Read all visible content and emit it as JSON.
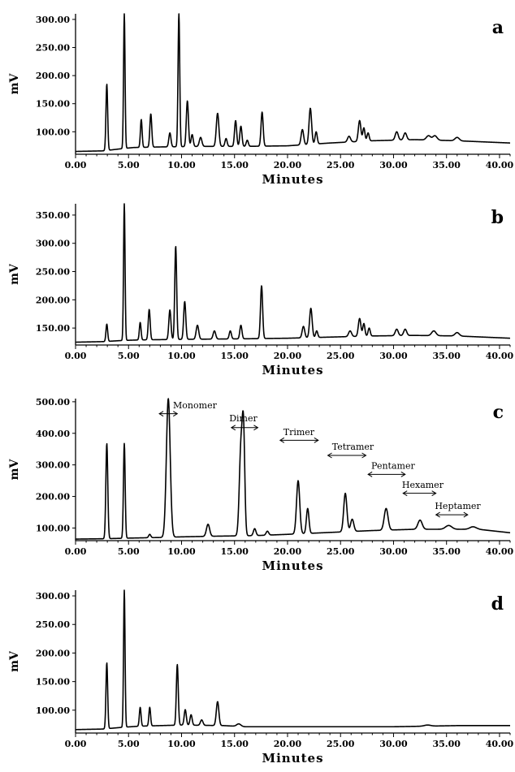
{
  "chart_data": [
    {
      "type": "line",
      "panel_label": "a",
      "xlabel": "Minutes",
      "ylabel": "mV",
      "xlim": [
        0,
        41
      ],
      "ylim": [
        60,
        310
      ],
      "xticks": [
        "0.00",
        "5.00",
        "10.00",
        "15.00",
        "20.00",
        "25.00",
        "30.00",
        "35.00",
        "40.00"
      ],
      "yticks": [
        "100.00",
        "150.00",
        "200.00",
        "250.00",
        "300.00"
      ],
      "ytick_values": [
        100,
        150,
        200,
        250,
        300
      ],
      "baseline": [
        [
          0,
          65
        ],
        [
          2.6,
          66
        ],
        [
          4.4,
          70
        ],
        [
          5.5,
          72
        ],
        [
          8,
          73
        ],
        [
          12,
          74
        ],
        [
          16,
          74
        ],
        [
          20,
          75
        ],
        [
          24,
          80
        ],
        [
          28,
          84
        ],
        [
          32,
          86
        ],
        [
          36,
          84
        ],
        [
          41,
          80
        ]
      ],
      "peaks": [
        {
          "x": 2.95,
          "h": 185,
          "w": 0.08
        },
        {
          "x": 4.6,
          "h": 310,
          "w": 0.07
        },
        {
          "x": 6.2,
          "h": 122,
          "w": 0.08
        },
        {
          "x": 7.1,
          "h": 132,
          "w": 0.09
        },
        {
          "x": 8.9,
          "h": 98,
          "w": 0.1
        },
        {
          "x": 9.75,
          "h": 310,
          "w": 0.08
        },
        {
          "x": 10.55,
          "h": 155,
          "w": 0.1
        },
        {
          "x": 11.0,
          "h": 95,
          "w": 0.1
        },
        {
          "x": 11.8,
          "h": 90,
          "w": 0.12
        },
        {
          "x": 13.4,
          "h": 133,
          "w": 0.12
        },
        {
          "x": 14.2,
          "h": 88,
          "w": 0.1
        },
        {
          "x": 15.1,
          "h": 120,
          "w": 0.1
        },
        {
          "x": 15.6,
          "h": 110,
          "w": 0.1
        },
        {
          "x": 16.2,
          "h": 85,
          "w": 0.1
        },
        {
          "x": 17.6,
          "h": 135,
          "w": 0.1
        },
        {
          "x": 21.4,
          "h": 104,
          "w": 0.12
        },
        {
          "x": 22.15,
          "h": 142,
          "w": 0.12
        },
        {
          "x": 22.7,
          "h": 100,
          "w": 0.1
        },
        {
          "x": 25.8,
          "h": 92,
          "w": 0.14
        },
        {
          "x": 26.8,
          "h": 120,
          "w": 0.12
        },
        {
          "x": 27.2,
          "h": 107,
          "w": 0.1
        },
        {
          "x": 27.6,
          "h": 98,
          "w": 0.1
        },
        {
          "x": 30.3,
          "h": 100,
          "w": 0.14
        },
        {
          "x": 31.1,
          "h": 98,
          "w": 0.14
        },
        {
          "x": 33.3,
          "h": 93,
          "w": 0.2
        },
        {
          "x": 33.9,
          "h": 93,
          "w": 0.2
        },
        {
          "x": 36.0,
          "h": 90,
          "w": 0.2
        }
      ]
    },
    {
      "type": "line",
      "panel_label": "b",
      "xlabel": "Minutes",
      "ylabel": "mV",
      "xlim": [
        0,
        41
      ],
      "ylim": [
        120,
        370
      ],
      "xticks": [
        "0.00",
        "5.00",
        "10.00",
        "15.00",
        "20.00",
        "25.00",
        "30.00",
        "35.00",
        "40.00"
      ],
      "yticks": [
        "150.00",
        "200.00",
        "250.00",
        "300.00",
        "350.00"
      ],
      "ytick_values": [
        150,
        200,
        250,
        300,
        350
      ],
      "baseline": [
        [
          0,
          125
        ],
        [
          2.6,
          126
        ],
        [
          4.4,
          128
        ],
        [
          6,
          129
        ],
        [
          10,
          130
        ],
        [
          16,
          131
        ],
        [
          20,
          132
        ],
        [
          24,
          134
        ],
        [
          28,
          136
        ],
        [
          32,
          137
        ],
        [
          36,
          136
        ],
        [
          41,
          132
        ]
      ],
      "peaks": [
        {
          "x": 2.95,
          "h": 157,
          "w": 0.08
        },
        {
          "x": 4.6,
          "h": 370,
          "w": 0.07
        },
        {
          "x": 6.1,
          "h": 160,
          "w": 0.08
        },
        {
          "x": 6.95,
          "h": 183,
          "w": 0.09
        },
        {
          "x": 8.9,
          "h": 182,
          "w": 0.1
        },
        {
          "x": 9.45,
          "h": 295,
          "w": 0.09
        },
        {
          "x": 10.3,
          "h": 197,
          "w": 0.1
        },
        {
          "x": 11.5,
          "h": 155,
          "w": 0.12
        },
        {
          "x": 13.1,
          "h": 145,
          "w": 0.12
        },
        {
          "x": 14.6,
          "h": 145,
          "w": 0.1
        },
        {
          "x": 15.6,
          "h": 155,
          "w": 0.1
        },
        {
          "x": 17.55,
          "h": 225,
          "w": 0.1
        },
        {
          "x": 21.5,
          "h": 153,
          "w": 0.12
        },
        {
          "x": 22.2,
          "h": 185,
          "w": 0.12
        },
        {
          "x": 22.75,
          "h": 145,
          "w": 0.1
        },
        {
          "x": 25.9,
          "h": 145,
          "w": 0.14
        },
        {
          "x": 26.8,
          "h": 167,
          "w": 0.12
        },
        {
          "x": 27.2,
          "h": 158,
          "w": 0.1
        },
        {
          "x": 27.7,
          "h": 150,
          "w": 0.1
        },
        {
          "x": 30.3,
          "h": 148,
          "w": 0.14
        },
        {
          "x": 31.1,
          "h": 148,
          "w": 0.14
        },
        {
          "x": 33.8,
          "h": 145,
          "w": 0.2
        },
        {
          "x": 36.0,
          "h": 142,
          "w": 0.2
        }
      ]
    },
    {
      "type": "line",
      "panel_label": "c",
      "xlabel": "Minutes",
      "ylabel": "mV",
      "xlim": [
        0,
        41
      ],
      "ylim": [
        60,
        510
      ],
      "xticks": [
        "0.00",
        "5.00",
        "10.00",
        "15.00",
        "20.00",
        "25.00",
        "30.00",
        "35.00",
        "40.00"
      ],
      "yticks": [
        "100.00",
        "200.00",
        "300.00",
        "400.00",
        "500.00"
      ],
      "ytick_values": [
        100,
        200,
        300,
        400,
        500
      ],
      "baseline": [
        [
          0,
          65
        ],
        [
          2.6,
          66
        ],
        [
          5,
          68
        ],
        [
          8,
          70
        ],
        [
          10,
          72
        ],
        [
          13,
          74
        ],
        [
          17,
          76
        ],
        [
          20,
          80
        ],
        [
          24,
          86
        ],
        [
          28,
          92
        ],
        [
          32,
          96
        ],
        [
          36,
          96
        ],
        [
          38,
          96
        ],
        [
          41,
          85
        ]
      ],
      "peaks": [
        {
          "x": 2.95,
          "h": 368,
          "w": 0.09
        },
        {
          "x": 4.6,
          "h": 368,
          "w": 0.08
        },
        {
          "x": 7.0,
          "h": 80,
          "w": 0.1
        },
        {
          "x": 8.75,
          "h": 510,
          "w": 0.18
        },
        {
          "x": 12.5,
          "h": 112,
          "w": 0.15
        },
        {
          "x": 15.6,
          "h": 350,
          "w": 0.15
        },
        {
          "x": 15.85,
          "h": 385,
          "w": 0.12
        },
        {
          "x": 16.9,
          "h": 98,
          "w": 0.12
        },
        {
          "x": 18.1,
          "h": 90,
          "w": 0.12
        },
        {
          "x": 21.0,
          "h": 250,
          "w": 0.15
        },
        {
          "x": 21.9,
          "h": 162,
          "w": 0.12
        },
        {
          "x": 25.45,
          "h": 210,
          "w": 0.15
        },
        {
          "x": 26.1,
          "h": 128,
          "w": 0.15
        },
        {
          "x": 29.3,
          "h": 162,
          "w": 0.18
        },
        {
          "x": 32.5,
          "h": 125,
          "w": 0.2
        },
        {
          "x": 35.2,
          "h": 108,
          "w": 0.3
        },
        {
          "x": 37.5,
          "h": 104,
          "w": 0.3
        }
      ],
      "annotations": [
        {
          "text": "Monomer",
          "x1": 7.9,
          "x2": 9.6,
          "y": 462,
          "lx": 9.2,
          "ly": 490
        },
        {
          "text": "Dimer",
          "x1": 14.7,
          "x2": 17.2,
          "y": 418,
          "lx": 14.5,
          "ly": 448
        },
        {
          "text": "Trimer",
          "x1": 19.3,
          "x2": 22.9,
          "y": 378,
          "lx": 19.6,
          "ly": 405
        },
        {
          "text": "Tetramer",
          "x1": 23.8,
          "x2": 27.4,
          "y": 330,
          "lx": 24.2,
          "ly": 358
        },
        {
          "text": "Pentamer",
          "x1": 27.6,
          "x2": 31.1,
          "y": 270,
          "lx": 27.9,
          "ly": 298
        },
        {
          "text": "Hexamer",
          "x1": 30.9,
          "x2": 34.0,
          "y": 210,
          "lx": 30.8,
          "ly": 237
        },
        {
          "text": "Heptamer",
          "x1": 34.0,
          "x2": 37.0,
          "y": 142,
          "lx": 33.9,
          "ly": 170
        }
      ]
    },
    {
      "type": "line",
      "panel_label": "d",
      "xlabel": "Minutes",
      "ylabel": "mV",
      "xlim": [
        0,
        41
      ],
      "ylim": [
        60,
        310
      ],
      "xticks": [
        "0.00",
        "5.00",
        "10.00",
        "15.00",
        "20.00",
        "25.00",
        "30.00",
        "35.00",
        "40.00"
      ],
      "yticks": [
        "100.00",
        "150.00",
        "200.00",
        "250.00",
        "300.00"
      ],
      "ytick_values": [
        100,
        150,
        200,
        250,
        300
      ],
      "baseline": [
        [
          0,
          66
        ],
        [
          2.6,
          67
        ],
        [
          4.4,
          70
        ],
        [
          6,
          72
        ],
        [
          10,
          74
        ],
        [
          14,
          73
        ],
        [
          16,
          71
        ],
        [
          20,
          71
        ],
        [
          25,
          71
        ],
        [
          30,
          71
        ],
        [
          33,
          72
        ],
        [
          36,
          73
        ],
        [
          41,
          73
        ]
      ],
      "peaks": [
        {
          "x": 2.95,
          "h": 183,
          "w": 0.08
        },
        {
          "x": 4.6,
          "h": 310,
          "w": 0.07
        },
        {
          "x": 6.1,
          "h": 105,
          "w": 0.08
        },
        {
          "x": 7.0,
          "h": 105,
          "w": 0.08
        },
        {
          "x": 9.6,
          "h": 180,
          "w": 0.09
        },
        {
          "x": 10.35,
          "h": 101,
          "w": 0.1
        },
        {
          "x": 10.9,
          "h": 92,
          "w": 0.1
        },
        {
          "x": 11.9,
          "h": 83,
          "w": 0.12
        },
        {
          "x": 13.4,
          "h": 115,
          "w": 0.12
        },
        {
          "x": 15.4,
          "h": 76,
          "w": 0.2
        },
        {
          "x": 33.2,
          "h": 74,
          "w": 0.3
        }
      ]
    }
  ]
}
